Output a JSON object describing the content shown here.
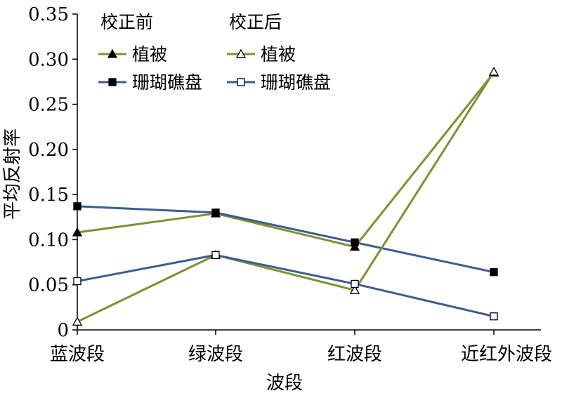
{
  "chart_data": {
    "type": "line",
    "xlabel": "波段",
    "ylabel": "平均反射率",
    "categories": [
      "蓝波段",
      "绿波段",
      "红波段",
      "近红外波段"
    ],
    "ylim": [
      0,
      0.35
    ],
    "yticks": [
      "0",
      "0.05",
      "0.10",
      "0.15",
      "0.20",
      "0.25",
      "0.30",
      "0.35"
    ],
    "legend": {
      "position": "top-left",
      "group_titles": [
        "校正前",
        "校正后"
      ]
    },
    "colors": {
      "vegetation": "#7f9131",
      "coral": "#3a5d91"
    },
    "series": [
      {
        "name": "植被",
        "group": "校正前",
        "marker": "triangle-filled",
        "color": "#7f9131",
        "values": [
          0.108,
          0.129,
          0.092,
          0.285
        ]
      },
      {
        "name": "珊瑚礁盘",
        "group": "校正前",
        "marker": "square-filled",
        "color": "#3a5d91",
        "values": [
          0.137,
          0.13,
          0.097,
          0.064
        ]
      },
      {
        "name": "植被",
        "group": "校正后",
        "marker": "triangle-open",
        "color": "#7f9131",
        "values": [
          0.009,
          0.083,
          0.044,
          0.286
        ]
      },
      {
        "name": "珊瑚礁盘",
        "group": "校正后",
        "marker": "square-open",
        "color": "#3a5d91",
        "values": [
          0.054,
          0.083,
          0.051,
          0.015
        ]
      }
    ]
  }
}
